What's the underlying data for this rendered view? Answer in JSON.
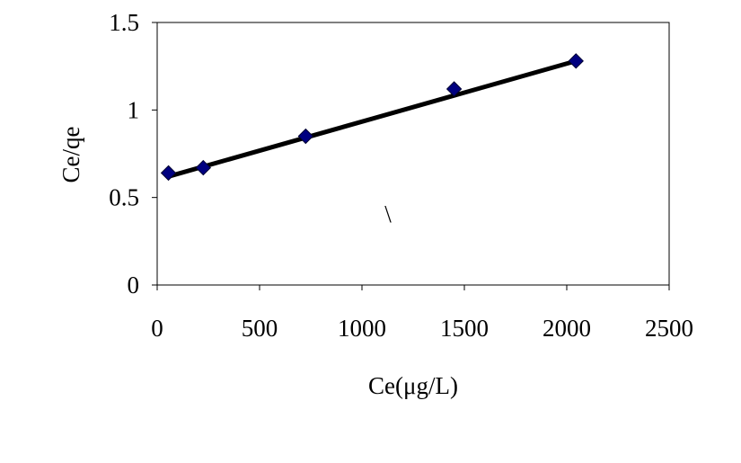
{
  "chart_data": {
    "type": "scatter",
    "title": "",
    "xlabel": "Ce(μg/L)",
    "ylabel": "Ce/qe",
    "xlim": [
      0,
      2500
    ],
    "ylim": [
      0,
      1.5
    ],
    "xticks": [
      "0",
      "500",
      "1000",
      "1500",
      "2000",
      "2500"
    ],
    "yticks": [
      "0",
      "0.5",
      "1",
      "1.5"
    ],
    "grid": false,
    "legend": "none",
    "series": [
      {
        "x": [
          55,
          225,
          725,
          1450,
          2045
        ],
        "y": [
          0.64,
          0.67,
          0.85,
          1.12,
          1.28
        ],
        "marker": "diamond",
        "color": "#000080"
      }
    ],
    "trendline": {
      "type": "linear",
      "x": [
        55,
        2045
      ],
      "y": [
        0.62,
        1.28
      ],
      "color": "#000000"
    },
    "annotations": [
      "\\"
    ]
  }
}
